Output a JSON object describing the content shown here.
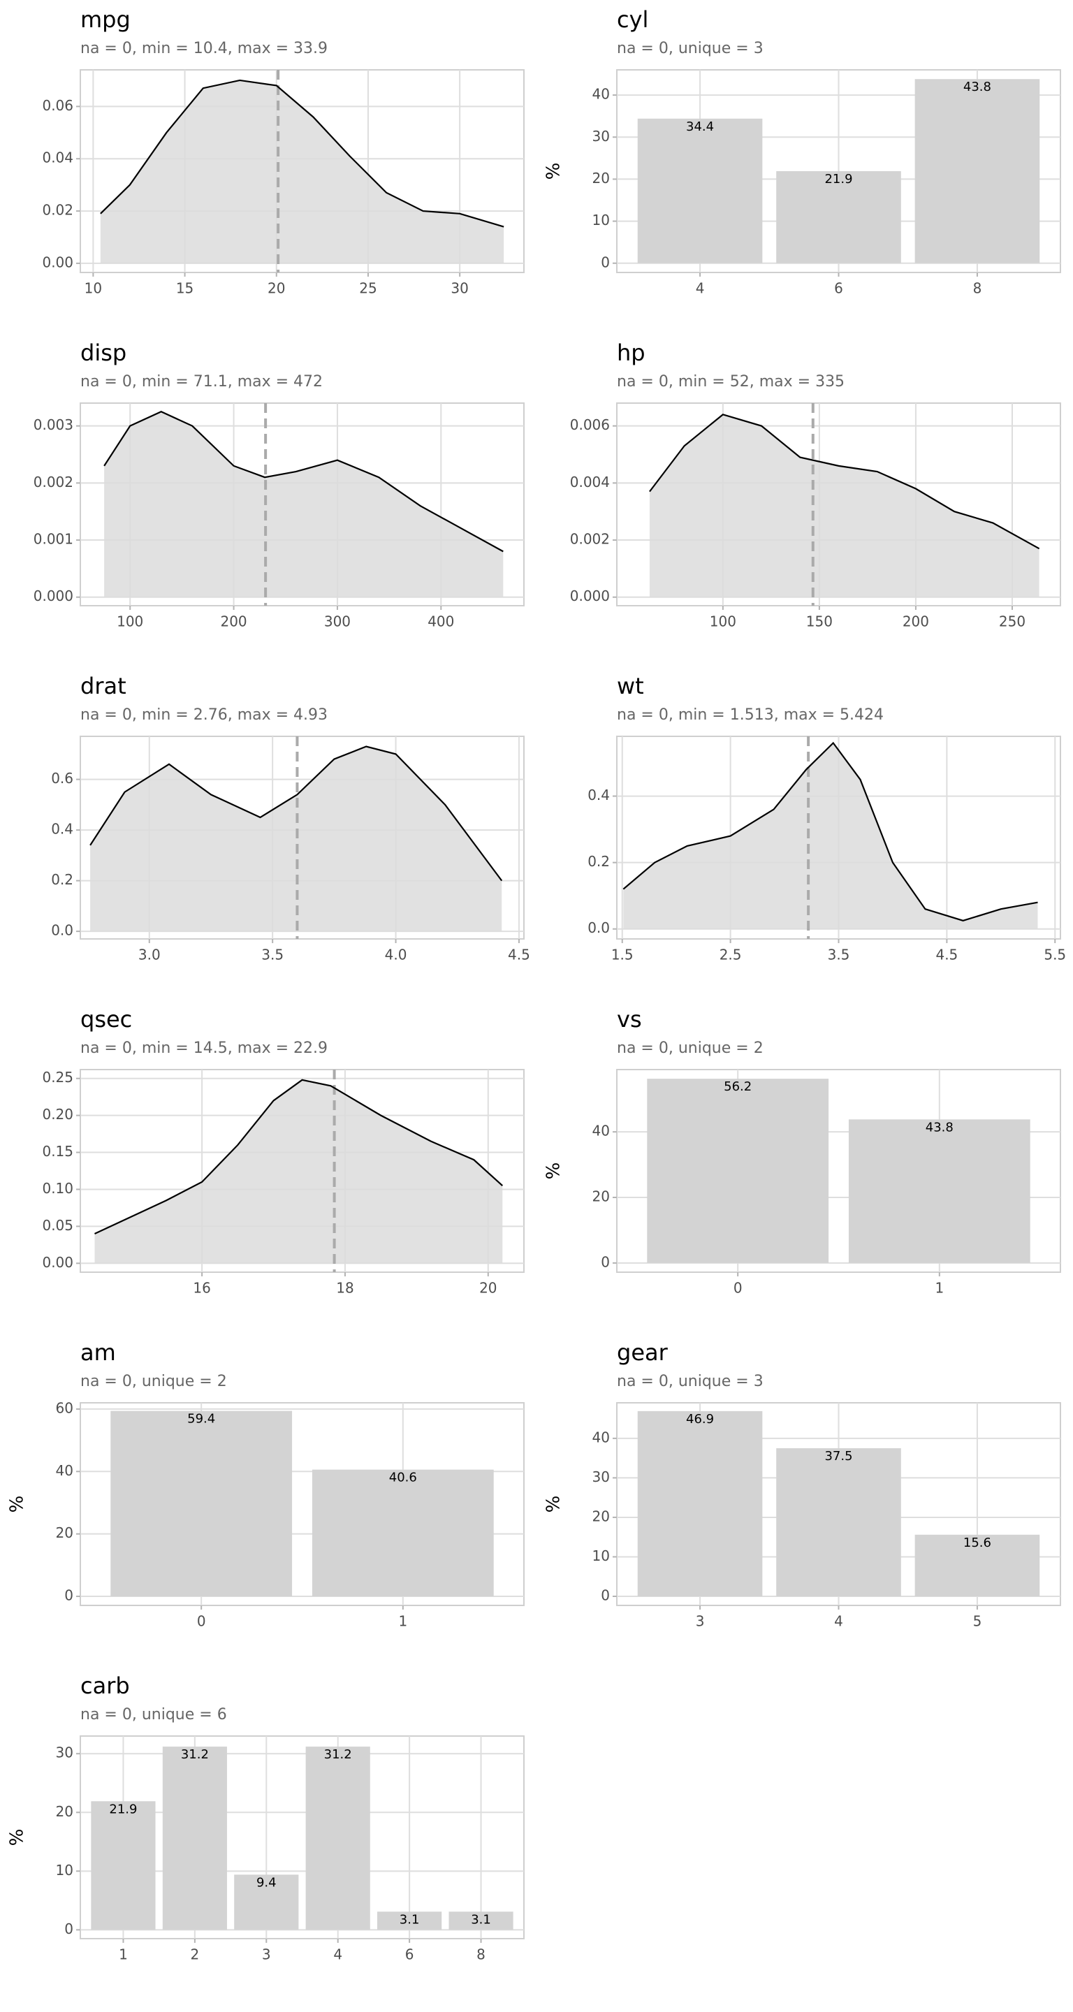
{
  "chart_data": [
    {
      "type": "density",
      "title": "mpg",
      "subtitle": "na = 0, min = 10.4, max = 33.9",
      "x": [
        10.4,
        12,
        14,
        16,
        18,
        20,
        22,
        24,
        26,
        28,
        30,
        32.4
      ],
      "values": [
        0.019,
        0.03,
        0.05,
        0.067,
        0.07,
        0.068,
        0.056,
        0.041,
        0.027,
        0.02,
        0.019,
        0.014
      ],
      "vline": 20.09,
      "xlim": [
        9.3,
        33.5
      ],
      "xticks": [
        10,
        15,
        20,
        25,
        30
      ],
      "ylim": [
        -0.0035,
        0.074
      ],
      "yticks": [
        {
          "value": 0,
          "label": "0.00"
        },
        0.02,
        0.04,
        0.06
      ]
    },
    {
      "type": "bar",
      "title": "cyl",
      "subtitle": "na = 0, unique = 3",
      "ylabel": "%",
      "categories": [
        "4",
        "6",
        "8"
      ],
      "values": [
        34.4,
        21.9,
        43.8
      ],
      "ylim": [
        -2.2,
        46
      ],
      "yticks": [
        0,
        10,
        20,
        30,
        40
      ]
    },
    {
      "type": "density",
      "title": "disp",
      "subtitle": "na = 0, min = 71.1, max = 472",
      "x": [
        75,
        100,
        130,
        160,
        200,
        230,
        260,
        300,
        340,
        380,
        420,
        460
      ],
      "values": [
        0.0023,
        0.003,
        0.00325,
        0.003,
        0.0023,
        0.0021,
        0.0022,
        0.0024,
        0.0021,
        0.0016,
        0.0012,
        0.0008
      ],
      "vline": 230.7,
      "xlim": [
        52,
        480
      ],
      "xticks": [
        100,
        200,
        300,
        400
      ],
      "ylim": [
        -0.00015,
        0.0034
      ],
      "yticks": [
        {
          "value": 0,
          "label": "0.000"
        },
        0.001,
        0.002,
        0.003
      ]
    },
    {
      "type": "density",
      "title": "hp",
      "subtitle": "na = 0, min = 52, max = 335",
      "x": [
        62,
        80,
        100,
        120,
        140,
        160,
        180,
        200,
        220,
        240,
        264
      ],
      "values": [
        0.0037,
        0.0053,
        0.0064,
        0.006,
        0.0049,
        0.0046,
        0.0044,
        0.0038,
        0.003,
        0.0026,
        0.0017
      ],
      "vline": 146.7,
      "xlim": [
        45,
        275
      ],
      "xticks": [
        100,
        150,
        200,
        250
      ],
      "ylim": [
        -0.0003,
        0.0068
      ],
      "yticks": [
        {
          "value": 0,
          "label": "0.000"
        },
        0.002,
        0.004,
        0.006
      ]
    },
    {
      "type": "density",
      "title": "drat",
      "subtitle": "na = 0, min = 2.76, max = 4.93",
      "x": [
        2.76,
        2.9,
        3.08,
        3.25,
        3.45,
        3.6,
        3.75,
        3.88,
        4.0,
        4.2,
        4.43
      ],
      "values": [
        0.34,
        0.55,
        0.66,
        0.54,
        0.45,
        0.54,
        0.68,
        0.73,
        0.7,
        0.5,
        0.2
      ],
      "vline": 3.6,
      "xlim": [
        2.72,
        4.52
      ],
      "xticks": [
        {
          "value": 3,
          "label": "3.0"
        },
        3.5,
        {
          "value": 4,
          "label": "4.0"
        },
        4.5
      ],
      "ylim": [
        -0.03,
        0.77
      ],
      "yticks": [
        {
          "value": 0,
          "label": "0.0"
        },
        0.2,
        0.4,
        0.6
      ]
    },
    {
      "type": "density",
      "title": "wt",
      "subtitle": "na = 0, min = 1.513, max = 5.424",
      "x": [
        1.51,
        1.8,
        2.1,
        2.5,
        2.9,
        3.2,
        3.45,
        3.7,
        4.0,
        4.3,
        4.65,
        5.0,
        5.34
      ],
      "values": [
        0.12,
        0.2,
        0.25,
        0.28,
        0.36,
        0.48,
        0.56,
        0.45,
        0.2,
        0.06,
        0.025,
        0.06,
        0.08
      ],
      "vline": 3.22,
      "xlim": [
        1.45,
        5.55
      ],
      "xticks": [
        1.5,
        2.5,
        3.5,
        4.5,
        5.5
      ],
      "ylim": [
        -0.03,
        0.58
      ],
      "yticks": [
        {
          "value": 0,
          "label": "0.0"
        },
        0.2,
        0.4
      ]
    },
    {
      "type": "density",
      "title": "qsec",
      "subtitle": "na = 0, min = 14.5, max = 22.9",
      "x": [
        14.5,
        15.5,
        16,
        16.5,
        17,
        17.4,
        17.8,
        18.5,
        19.2,
        19.8,
        20.2
      ],
      "values": [
        0.04,
        0.085,
        0.11,
        0.16,
        0.22,
        0.248,
        0.24,
        0.2,
        0.165,
        0.14,
        0.105
      ],
      "vline": 17.85,
      "xlim": [
        14.3,
        20.5
      ],
      "xticks": [
        16,
        18,
        20
      ],
      "ylim": [
        -0.012,
        0.262
      ],
      "yticks": [
        {
          "value": 0,
          "label": "0.00"
        },
        0.05,
        {
          "value": 0.1,
          "label": "0.10"
        },
        0.15,
        {
          "value": 0.2,
          "label": "0.20"
        },
        0.25
      ]
    },
    {
      "type": "bar",
      "title": "vs",
      "subtitle": "na = 0, unique = 2",
      "ylabel": "%",
      "categories": [
        "0",
        "1"
      ],
      "values": [
        56.2,
        43.8
      ],
      "ylim": [
        -2.8,
        59
      ],
      "yticks": [
        0,
        20,
        40
      ]
    },
    {
      "type": "bar",
      "title": "am",
      "subtitle": "na = 0, unique = 2",
      "ylabel": "%",
      "categories": [
        "0",
        "1"
      ],
      "values": [
        59.4,
        40.6
      ],
      "ylim": [
        -2.9,
        62
      ],
      "yticks": [
        0,
        20,
        40,
        60
      ]
    },
    {
      "type": "bar",
      "title": "gear",
      "subtitle": "na = 0, unique = 3",
      "ylabel": "%",
      "categories": [
        "3",
        "4",
        "5"
      ],
      "values": [
        46.9,
        37.5,
        15.6
      ],
      "ylim": [
        -2.3,
        49
      ],
      "yticks": [
        0,
        10,
        20,
        30,
        40
      ]
    },
    {
      "type": "bar",
      "title": "carb",
      "subtitle": "na = 0, unique = 6",
      "ylabel": "%",
      "categories": [
        "1",
        "2",
        "3",
        "4",
        "6",
        "8"
      ],
      "values": [
        21.9,
        31.2,
        9.4,
        31.2,
        3.1,
        3.1
      ],
      "ylim": [
        -1.5,
        33
      ],
      "yticks": [
        0,
        10,
        20,
        30
      ]
    }
  ]
}
